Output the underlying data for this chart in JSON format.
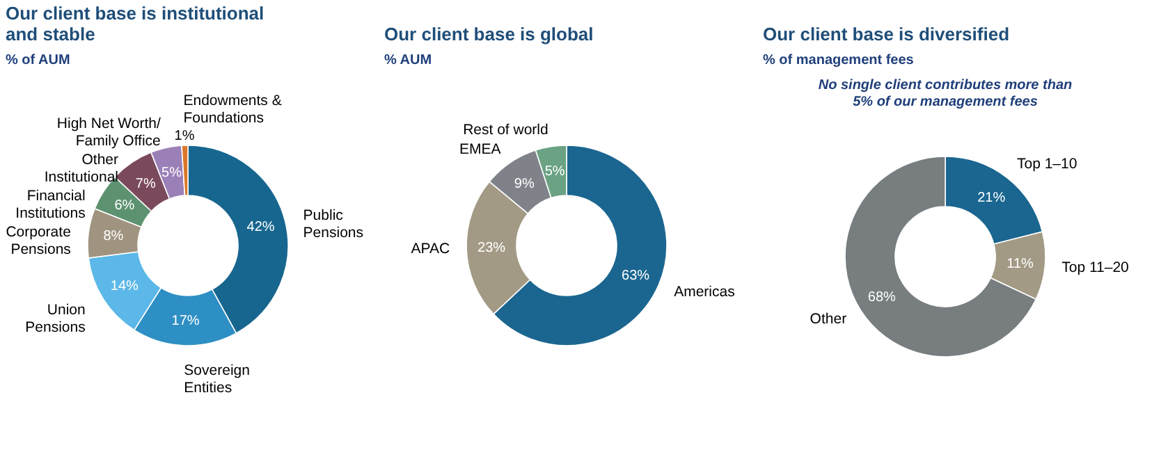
{
  "chart_data": [
    {
      "type": "donut",
      "title": "Our client base is institutional and stable",
      "subtitle": "% of AUM",
      "categories": [
        "Public Pensions",
        "Sovereign Entities",
        "Union Pensions",
        "Corporate Pensions",
        "Financial Institutions",
        "Other Institutional",
        "High Net Worth/ Family Office",
        "Endowments & Foundations"
      ],
      "values": [
        42,
        17,
        14,
        8,
        6,
        7,
        5,
        1
      ],
      "value_labels": [
        "42%",
        "17%",
        "14%",
        "8%",
        "6%",
        "7%",
        "5%",
        "1%"
      ],
      "colors": [
        "#17668f",
        "#2e8fc4",
        "#5bb8e8",
        "#a09480",
        "#5d9270",
        "#7a4a5c",
        "#9b80b8",
        "#d9782a"
      ]
    },
    {
      "type": "donut",
      "title": "Our client base is global",
      "subtitle": "%  AUM",
      "categories": [
        "Americas",
        "APAC",
        "EMEA",
        "Rest of world"
      ],
      "values": [
        63,
        23,
        9,
        5
      ],
      "value_labels": [
        "63%",
        "23%",
        "9%",
        "5%"
      ],
      "colors": [
        "#1a6690",
        "#a39a85",
        "#7f8389",
        "#6aa283"
      ]
    },
    {
      "type": "donut",
      "title": "Our client base is diversified",
      "subtitle": "% of management fees",
      "annotations": [
        "No single client contributes more than 5% of our management fees"
      ],
      "categories": [
        "Top 1–10",
        "Top 11–20",
        "Other"
      ],
      "values": [
        21,
        11,
        68
      ],
      "value_labels": [
        "21%",
        "11%",
        "68%"
      ],
      "colors": [
        "#1a6690",
        "#a39a85",
        "#787d80"
      ]
    }
  ]
}
